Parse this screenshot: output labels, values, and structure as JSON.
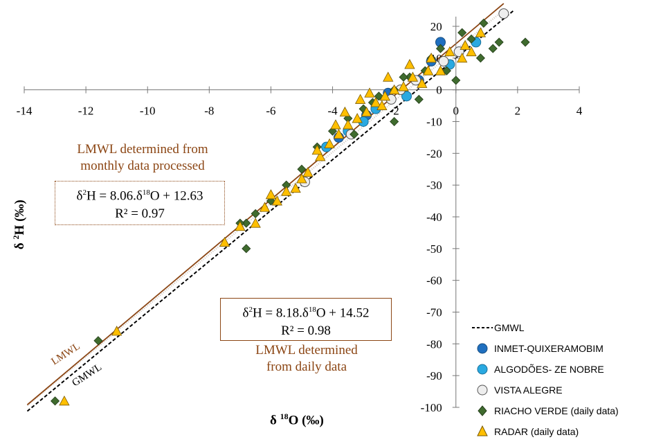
{
  "chart_data": {
    "type": "scatter",
    "xlabel": "δ 18O (‰)",
    "ylabel": "δ 2H (‰)",
    "xlim": [
      -14,
      4
    ],
    "ylim": [
      -100,
      20
    ],
    "x_ticks": [
      -14,
      -12,
      -10,
      -8,
      -6,
      -4,
      -2,
      0,
      2,
      4
    ],
    "y_ticks": [
      20,
      10,
      0,
      -10,
      -20,
      -30,
      -40,
      -50,
      -60,
      -70,
      -80,
      -90,
      -100
    ],
    "lines": [
      {
        "name": "GMWL",
        "slope": 8.0,
        "intercept": 10.0,
        "color": "#000000",
        "style": "dashed",
        "label": "GMWL"
      },
      {
        "name": "LMWL determined from monthly data processed",
        "slope": 8.06,
        "intercept": 12.63,
        "color": "#cfc6be",
        "style": "dotted"
      },
      {
        "name": "LMWL determined from daily data",
        "slope": 8.18,
        "intercept": 14.52,
        "color": "#8B4513",
        "style": "solid",
        "label": "LMWL"
      }
    ],
    "series": [
      {
        "name": "INMET-QUIXERAMOBIM",
        "marker": "circle",
        "color": "#1f6fbf",
        "points": [
          [
            -0.5,
            15
          ],
          [
            -2.2,
            -1
          ],
          [
            -3.8,
            -15
          ],
          [
            -1.2,
            3
          ],
          [
            -0.8,
            9
          ],
          [
            -2.9,
            -8
          ]
        ]
      },
      {
        "name": "ALGODÕES- ZE NOBRE",
        "marker": "circle",
        "color": "#29a9e1",
        "points": [
          [
            0.65,
            15
          ],
          [
            -0.2,
            8
          ],
          [
            -1.6,
            -2
          ],
          [
            -3.0,
            -10
          ],
          [
            -3.5,
            -13
          ],
          [
            -4.2,
            -18
          ],
          [
            -2.6,
            -6
          ]
        ]
      },
      {
        "name": "VISTA ALEGRE",
        "marker": "circle",
        "color": "#eeeeee",
        "points": [
          [
            1.55,
            24
          ],
          [
            0.1,
            12
          ],
          [
            -0.4,
            9
          ],
          [
            -1.3,
            3
          ],
          [
            -2.1,
            -3
          ],
          [
            -3.4,
            -14
          ],
          [
            -4.9,
            -29
          ],
          [
            -1.8,
            0
          ]
        ]
      },
      {
        "name": "RIACHO VERDE (daily data)",
        "marker": "diamond",
        "color": "#3f6b2e",
        "points": [
          [
            2.25,
            15
          ],
          [
            1.4,
            15
          ],
          [
            1.2,
            13
          ],
          [
            0.9,
            21
          ],
          [
            0.8,
            10
          ],
          [
            0.2,
            18
          ],
          [
            0.0,
            3
          ],
          [
            -0.5,
            13
          ],
          [
            -1.0,
            6
          ],
          [
            -1.5,
            4
          ],
          [
            -2.0,
            0
          ],
          [
            -2.5,
            -2
          ],
          [
            -3.0,
            -6
          ],
          [
            -3.5,
            -9
          ],
          [
            -4.0,
            -13
          ],
          [
            -4.5,
            -18
          ],
          [
            -5.0,
            -25
          ],
          [
            -5.5,
            -30
          ],
          [
            -6.0,
            -35
          ],
          [
            -6.5,
            -39
          ],
          [
            -6.8,
            -42
          ],
          [
            -6.8,
            -50
          ],
          [
            -7.0,
            -42
          ],
          [
            -11.6,
            -79
          ],
          [
            -13.0,
            -98
          ],
          [
            -2.0,
            -10
          ],
          [
            -1.2,
            -3
          ],
          [
            -0.3,
            6
          ],
          [
            0.5,
            16
          ],
          [
            -3.3,
            -14
          ],
          [
            -2.7,
            -4
          ],
          [
            -1.7,
            4
          ],
          [
            -0.8,
            10
          ]
        ]
      },
      {
        "name": "RADAR (daily data)",
        "marker": "triangle",
        "color": "#ffbf00",
        "points": [
          [
            0.8,
            18
          ],
          [
            0.5,
            12
          ],
          [
            0.2,
            10
          ],
          [
            -0.2,
            12
          ],
          [
            -0.5,
            6
          ],
          [
            -0.8,
            10
          ],
          [
            -1.1,
            2
          ],
          [
            -1.4,
            4
          ],
          [
            -1.7,
            1
          ],
          [
            -2.0,
            0
          ],
          [
            -2.3,
            -2
          ],
          [
            -2.6,
            -4
          ],
          [
            -2.9,
            -7
          ],
          [
            -3.2,
            -9
          ],
          [
            -3.5,
            -11
          ],
          [
            -3.8,
            -14
          ],
          [
            -4.1,
            -17
          ],
          [
            -4.4,
            -21
          ],
          [
            -4.8,
            -26
          ],
          [
            -5.0,
            -28
          ],
          [
            -5.5,
            -32
          ],
          [
            -5.8,
            -35
          ],
          [
            -6.2,
            -37
          ],
          [
            -6.5,
            -42
          ],
          [
            -7.0,
            -43
          ],
          [
            -7.5,
            -48
          ],
          [
            -11.0,
            -76
          ],
          [
            -12.7,
            -98
          ],
          [
            -1.5,
            8
          ],
          [
            -2.2,
            4
          ],
          [
            -2.8,
            -1
          ],
          [
            -3.1,
            -3
          ],
          [
            -3.6,
            -7
          ],
          [
            -0.9,
            6
          ],
          [
            0.3,
            14
          ],
          [
            -4.5,
            -19
          ],
          [
            -6.0,
            -33
          ],
          [
            -5.2,
            -31
          ],
          [
            -3.9,
            -11
          ],
          [
            -2.4,
            -5
          ]
        ]
      }
    ],
    "annotations": [
      {
        "line1": "LMWL determined from",
        "line2": "monthly data processed"
      },
      {
        "line1": "LMWL determined",
        "line2": "from daily data"
      }
    ],
    "equations": {
      "monthly": {
        "eq": "δ2H = 8.06.δ18O + 12.63",
        "r2": "R² = 0.97"
      },
      "daily": {
        "eq": "δ2H = 8.18.δ18O + 14.52",
        "r2": "R² = 0.98"
      }
    }
  }
}
